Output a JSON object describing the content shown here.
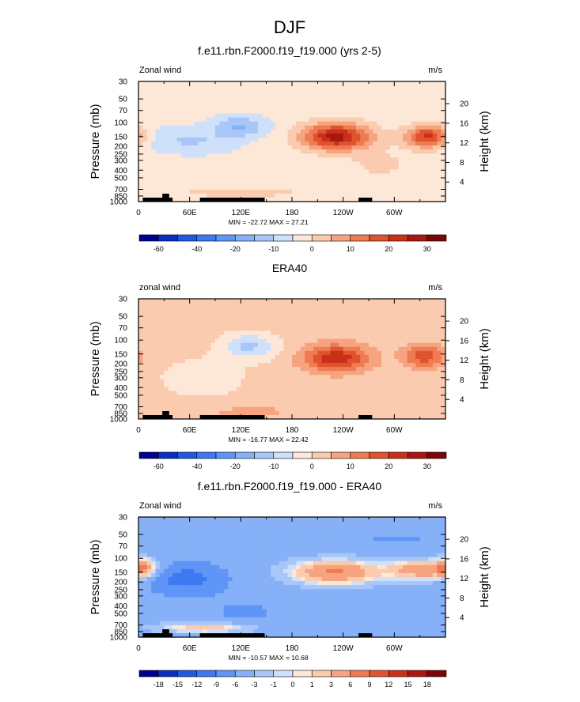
{
  "figure": {
    "title": "DJF",
    "y_left_label": "Pressure (mb)",
    "y_right_label": "Height (km)",
    "pressure_ticks": [
      30,
      50,
      70,
      100,
      150,
      200,
      250,
      300,
      400,
      500,
      700,
      850,
      1000
    ],
    "height_ticks": [
      20,
      16,
      12,
      8,
      4
    ],
    "x_ticks": [
      "0",
      "60E",
      "120E",
      "180",
      "120W",
      "60W"
    ],
    "x_tick_lon": [
      0,
      60,
      120,
      180,
      240,
      300
    ]
  },
  "chart_data": [
    {
      "type": "heatmap",
      "title": "f.e11.rbn.F2000.f19_f19.000 (yrs 2-5)",
      "left_label": "Zonal wind",
      "units": "m/s",
      "stats": "MIN = -22.72  MAX = 27.21",
      "xlim": [
        0,
        360
      ],
      "ylim_pressure": [
        1000,
        30
      ],
      "colorbar": {
        "levels": [
          -70,
          -60,
          -50,
          -40,
          -30,
          -20,
          -15,
          -10,
          -5,
          0,
          5,
          10,
          15,
          20,
          25,
          30,
          35
        ],
        "labels": [
          "-60",
          "-40",
          "-20",
          "-10",
          "0",
          "10",
          "20",
          "30"
        ],
        "label_at": [
          -60,
          -40,
          -20,
          -10,
          0,
          10,
          20,
          30
        ]
      },
      "background": -3,
      "features": [
        {
          "lon": 45,
          "p": 165,
          "lon_width": 52,
          "logp_width": 0.17,
          "amp": -6
        },
        {
          "lon": 120,
          "p": 110,
          "lon_width": 30,
          "logp_width": 0.13,
          "amp": -12
        },
        {
          "lon": 88,
          "p": 170,
          "lon_width": 45,
          "logp_width": 0.18,
          "amp": -3
        },
        {
          "lon": 232,
          "p": 150,
          "lon_width": 40,
          "logp_width": 0.17,
          "amp": 30
        },
        {
          "lon": 340,
          "p": 150,
          "lon_width": 26,
          "logp_width": 0.14,
          "amp": 25
        },
        {
          "lon": 120,
          "p": 760,
          "lon_width": 75,
          "logp_width": 0.07,
          "amp": 6
        },
        {
          "lon": 285,
          "p": 340,
          "lon_width": 40,
          "logp_width": 0.2,
          "amp": 4
        }
      ]
    },
    {
      "type": "heatmap",
      "title": "ERA40",
      "left_label": "zonal wind",
      "units": "m/s",
      "stats": "MIN = -16.77  MAX = 22.42",
      "xlim": [
        0,
        360
      ],
      "ylim_pressure": [
        1000,
        30
      ],
      "colorbar": {
        "levels": [
          -70,
          -60,
          -50,
          -40,
          -30,
          -20,
          -15,
          -10,
          -5,
          0,
          5,
          10,
          15,
          20,
          25,
          30,
          35
        ],
        "labels": [
          "-60",
          "-40",
          "-20",
          "-10",
          "0",
          "10",
          "20",
          "30"
        ],
        "label_at": [
          -60,
          -40,
          -20,
          -10,
          0,
          10,
          20,
          30
        ]
      },
      "background": 2,
      "features": [
        {
          "lon": 130,
          "p": 120,
          "lon_width": 32,
          "logp_width": 0.16,
          "amp": -13
        },
        {
          "lon": 75,
          "p": 300,
          "lon_width": 50,
          "logp_width": 0.25,
          "amp": -5
        },
        {
          "lon": 232,
          "p": 170,
          "lon_width": 38,
          "logp_width": 0.17,
          "amp": 22
        },
        {
          "lon": 335,
          "p": 160,
          "lon_width": 24,
          "logp_width": 0.14,
          "amp": 17
        },
        {
          "lon": 130,
          "p": 800,
          "lon_width": 80,
          "logp_width": 0.08,
          "amp": 4
        }
      ]
    },
    {
      "type": "heatmap",
      "title": "f.e11.rbn.F2000.f19_f19.000 - ERA40",
      "left_label": "Zonal wind",
      "units": "m/s",
      "stats": "MIN = -10.57  MAX = 10.68",
      "xlim": [
        0,
        360
      ],
      "ylim_pressure": [
        1000,
        30
      ],
      "colorbar": {
        "levels": [
          -21,
          -18,
          -15,
          -12,
          -9,
          -6,
          -3,
          -1,
          0,
          1,
          3,
          6,
          9,
          12,
          15,
          18,
          21
        ],
        "labels": [
          "-18",
          "-15",
          "-12",
          "-9",
          "-6",
          "-3",
          "-1",
          "0",
          "1",
          "3",
          "6",
          "9",
          "12",
          "15",
          "18"
        ],
        "label_at": [
          -18,
          -15,
          -12,
          -9,
          -6,
          -3,
          -1,
          0,
          1,
          3,
          6,
          9,
          12,
          15,
          18
        ]
      },
      "background": -4.5,
      "features": [
        {
          "lon": 55,
          "p": 180,
          "lon_width": 45,
          "logp_width": 0.2,
          "amp": -6
        },
        {
          "lon": 125,
          "p": 500,
          "lon_width": 50,
          "logp_width": 0.22,
          "amp": -2
        },
        {
          "lon": 230,
          "p": 150,
          "lon_width": 55,
          "logp_width": 0.16,
          "amp": 11
        },
        {
          "lon": 335,
          "p": 140,
          "lon_width": 40,
          "logp_width": 0.13,
          "amp": 10
        },
        {
          "lon": 5,
          "p": 130,
          "lon_width": 15,
          "logp_width": 0.12,
          "amp": 8
        },
        {
          "lon": 80,
          "p": 760,
          "lon_width": 60,
          "logp_width": 0.07,
          "amp": 7
        },
        {
          "lon": 300,
          "p": 60,
          "lon_width": 90,
          "logp_width": 0.05,
          "amp": -2
        }
      ]
    }
  ]
}
